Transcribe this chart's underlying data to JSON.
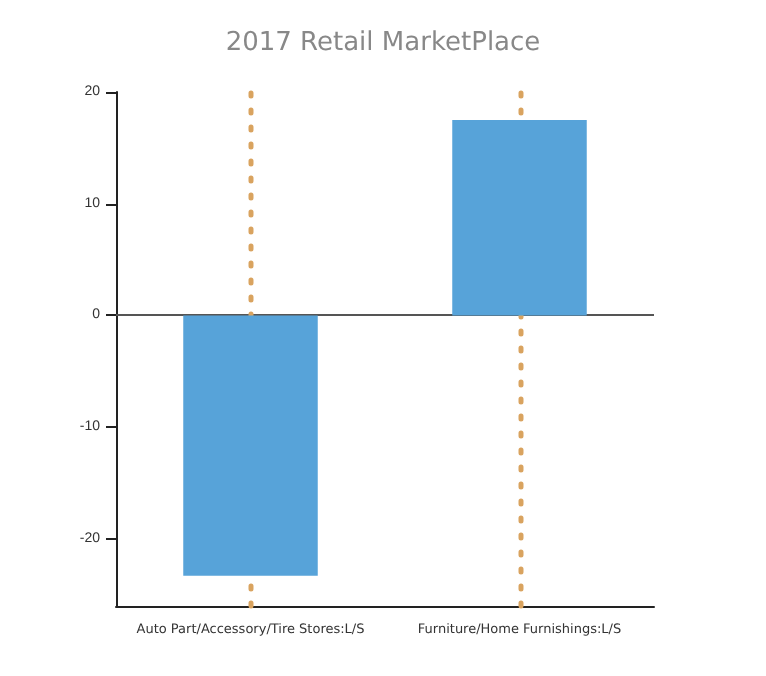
{
  "chart_data": {
    "type": "bar",
    "title": "2017 Retail MarketPlace",
    "categories": [
      "Auto Part/Accessory/Tire Stores:L/S",
      "Furniture/Home Furnishings:L/S"
    ],
    "values": [
      -23.3,
      17.5
    ],
    "color": "#57a3d9",
    "ylim": [
      -26,
      20
    ],
    "yticks": [
      -20,
      -10,
      0,
      10,
      20
    ],
    "ref_lines": [
      {
        "axis": "y",
        "value": 0,
        "color": "#555555",
        "line_style": "solid"
      },
      {
        "axis": "x",
        "value": "Auto Part/Accessory/Tire Stores:L/S",
        "color": "#d9a35f",
        "line_style": "dotted"
      },
      {
        "axis": "x",
        "value": "Furniture/Home Furnishings:L/S",
        "color": "#d9a35f",
        "line_style": "dotted"
      }
    ]
  }
}
